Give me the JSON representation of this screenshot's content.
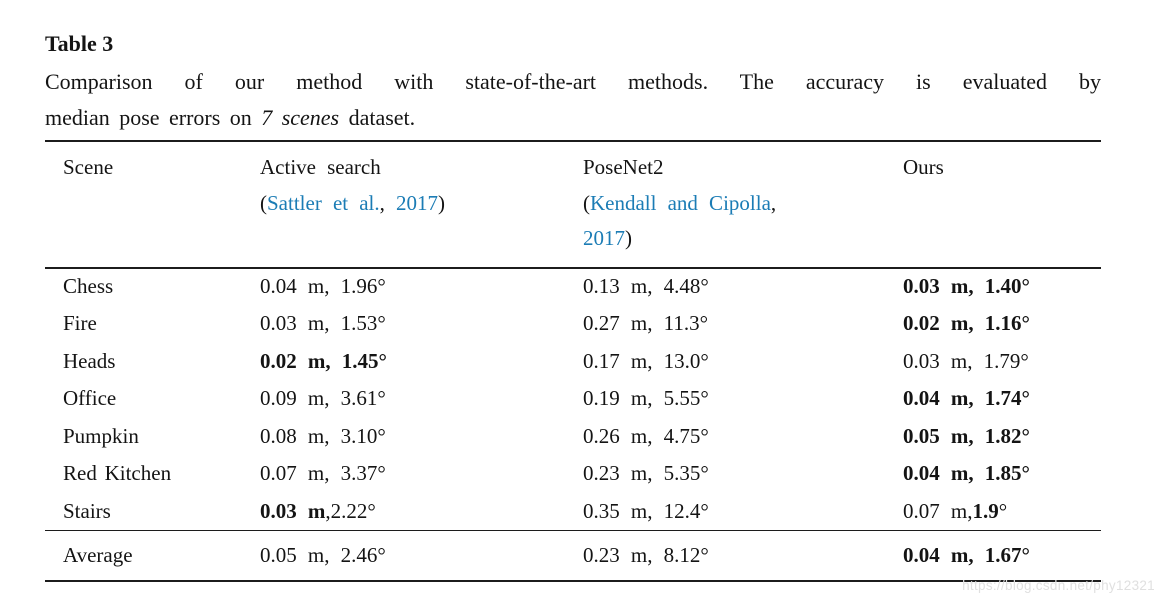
{
  "title": "Table 3",
  "caption": {
    "line1": "Comparison of our method with state-of-the-art methods. The accuracy is evaluated by",
    "line2_prefix": "median pose errors on ",
    "line2_italic": "7 scenes",
    "line2_suffix": " dataset."
  },
  "colors": {
    "text": "#141414",
    "rule": "#1c1c1c",
    "link_blue": "#1b7cb5",
    "watermark": "#e0e0e0"
  },
  "watermark": "https://blog.csdn.net/phy12321",
  "table": {
    "header": {
      "scene": "Scene",
      "ours": "Ours",
      "active_search": {
        "name": "Active search",
        "citation": [
          {
            "t": "(",
            "blue": false
          },
          {
            "t": "Sattler et al.",
            "blue": true
          },
          {
            "t": ", ",
            "blue": false
          },
          {
            "t": "2017",
            "blue": true
          },
          {
            "t": ")",
            "blue": false
          }
        ]
      },
      "posenet2": {
        "name": "PoseNet2",
        "citation_line1": [
          {
            "t": "(",
            "blue": false
          },
          {
            "t": "Kendall and Cipolla",
            "blue": true
          },
          {
            "t": ",",
            "blue": false
          }
        ],
        "citation_line2": [
          {
            "t": "2017",
            "blue": true
          },
          {
            "t": ")",
            "blue": false
          }
        ]
      }
    },
    "rows": [
      {
        "scene": "Chess",
        "cells": [
          [
            {
              "t": "0.04 m, 1.96°",
              "b": false
            }
          ],
          [
            {
              "t": "0.13 m, 4.48°",
              "b": false
            }
          ],
          [
            {
              "t": "0.03 m, 1.40°",
              "b": true
            }
          ]
        ]
      },
      {
        "scene": "Fire",
        "cells": [
          [
            {
              "t": "0.03 m, 1.53°",
              "b": false
            }
          ],
          [
            {
              "t": "0.27 m, 11.3°",
              "b": false
            }
          ],
          [
            {
              "t": "0.02 m, 1.16°",
              "b": true
            }
          ]
        ]
      },
      {
        "scene": "Heads",
        "cells": [
          [
            {
              "t": "0.02 m, 1.45°",
              "b": true
            }
          ],
          [
            {
              "t": "0.17 m, 13.0°",
              "b": false
            }
          ],
          [
            {
              "t": "0.03 m, 1.79°",
              "b": false
            }
          ]
        ]
      },
      {
        "scene": "Office",
        "cells": [
          [
            {
              "t": "0.09 m, 3.61°",
              "b": false
            }
          ],
          [
            {
              "t": "0.19 m, 5.55°",
              "b": false
            }
          ],
          [
            {
              "t": "0.04 m, 1.74°",
              "b": true
            }
          ]
        ]
      },
      {
        "scene": "Pumpkin",
        "cells": [
          [
            {
              "t": "0.08 m, 3.10°",
              "b": false
            }
          ],
          [
            {
              "t": "0.26 m, 4.75°",
              "b": false
            }
          ],
          [
            {
              "t": "0.05 m, 1.82°",
              "b": true
            }
          ]
        ]
      },
      {
        "scene": "Red Kitchen",
        "cells": [
          [
            {
              "t": "0.07 m, 3.37°",
              "b": false
            }
          ],
          [
            {
              "t": "0.23 m, 5.35°",
              "b": false
            }
          ],
          [
            {
              "t": "0.04 m, 1.85°",
              "b": true
            }
          ]
        ]
      },
      {
        "scene": "Stairs",
        "cells": [
          [
            {
              "t": "0.03 m",
              "b": true
            },
            {
              "t": ",2.22°",
              "b": false
            }
          ],
          [
            {
              "t": "0.35 m, 12.4°",
              "b": false
            }
          ],
          [
            {
              "t": "0.07 m,",
              "b": false
            },
            {
              "t": "1.9",
              "b": true
            },
            {
              "t": "°",
              "b": false
            }
          ]
        ]
      }
    ],
    "average": {
      "scene": "Average",
      "cells": [
        [
          {
            "t": "0.05 m, 2.46°",
            "b": false
          }
        ],
        [
          {
            "t": "0.23 m, 8.12°",
            "b": false
          }
        ],
        [
          {
            "t": "0.04 m, 1.67°",
            "b": true
          }
        ]
      ]
    }
  }
}
